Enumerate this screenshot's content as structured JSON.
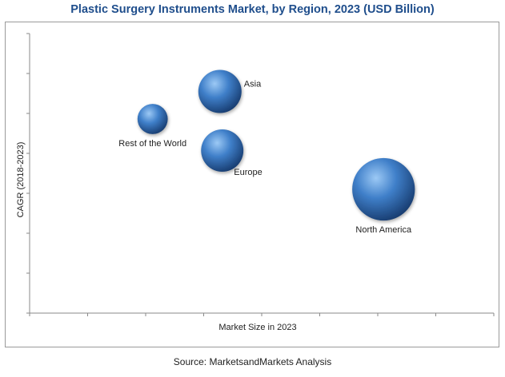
{
  "chart_data": {
    "type": "scatter",
    "title": "Plastic Surgery Instruments Market, by Region, 2023 (USD Billion)",
    "xlabel": "Market Size in 2023",
    "ylabel": "CAGR (2018-2023)",
    "xlim": [
      0,
      8
    ],
    "ylim": [
      0,
      7
    ],
    "grid": false,
    "series": [
      {
        "label": "Asia",
        "x": 3.28,
        "y": 5.55,
        "size": 1.0,
        "label_position": "right"
      },
      {
        "label": "Rest of the World",
        "x": 2.12,
        "y": 4.86,
        "size": 0.7,
        "label_position": "below"
      },
      {
        "label": "Europe",
        "x": 3.32,
        "y": 4.07,
        "size": 0.98,
        "label_position": "below-right"
      },
      {
        "label": "North America",
        "x": 6.1,
        "y": 3.1,
        "size": 1.45,
        "label_position": "below"
      }
    ],
    "colors": {
      "bubble": "#2f6bb5",
      "bubble_light": "#9cc9f5",
      "bubble_dark": "#173b6e"
    }
  },
  "source": "Source: MarketsandMarkets Analysis"
}
